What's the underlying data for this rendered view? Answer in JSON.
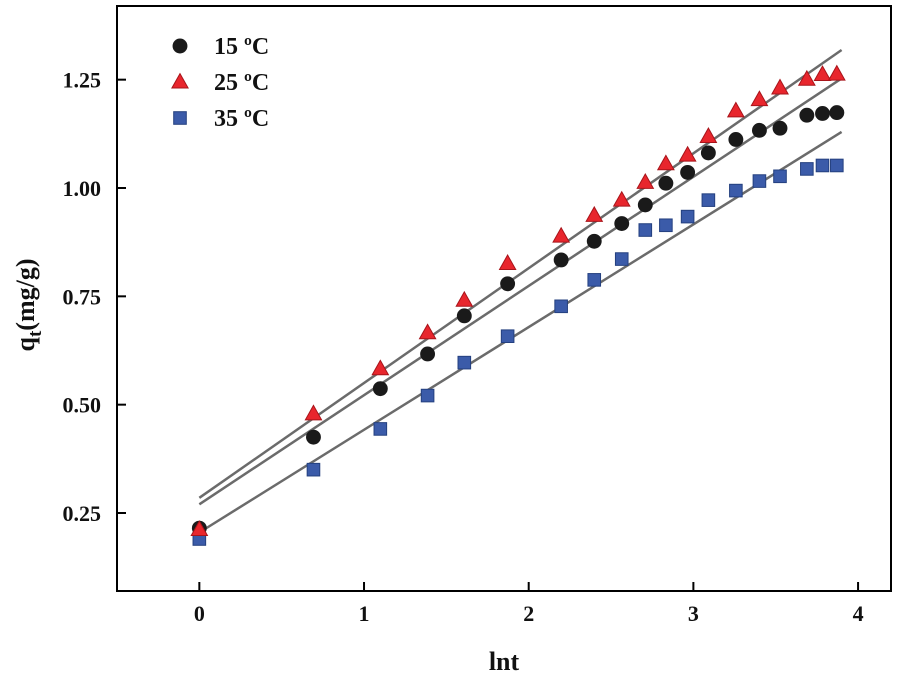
{
  "chart_data": {
    "type": "scatter",
    "title": "",
    "xlabel": "lnt",
    "ylabel_main": "q",
    "ylabel_sub": "t",
    "ylabel_rest": "(mg/g)",
    "xlim": [
      -0.5,
      4.2
    ],
    "ylim": [
      0.07,
      1.42
    ],
    "xticks": [
      0,
      1,
      2,
      3,
      4
    ],
    "xtick_labels": [
      "0",
      "1",
      "2",
      "3",
      "4"
    ],
    "yticks": [
      0.25,
      0.5,
      0.75,
      1.0,
      1.25
    ],
    "ytick_labels": [
      "0.25",
      "0.50",
      "0.75",
      "1.00",
      "1.25"
    ],
    "grid": false,
    "legend_position": "top-left",
    "x": [
      0,
      0.693,
      1.099,
      1.386,
      1.609,
      1.872,
      2.197,
      2.398,
      2.565,
      2.708,
      2.833,
      2.965,
      3.091,
      3.258,
      3.401,
      3.526,
      3.689,
      3.784,
      3.871
    ],
    "series": [
      {
        "name": "15 ºC",
        "marker": "circle",
        "color": "#1a1a1a",
        "values": [
          0.215,
          0.425,
          0.537,
          0.617,
          0.705,
          0.779,
          0.834,
          0.877,
          0.918,
          0.961,
          1.011,
          1.036,
          1.081,
          1.112,
          1.133,
          1.138,
          1.168,
          1.172,
          1.174
        ],
        "fit": {
          "slope": 0.252,
          "intercept": 0.27
        }
      },
      {
        "name": "25 ºC",
        "marker": "triangle",
        "color": "#e8262d",
        "values": [
          0.212,
          0.479,
          0.583,
          0.666,
          0.741,
          0.826,
          0.889,
          0.937,
          0.972,
          1.013,
          1.056,
          1.076,
          1.119,
          1.178,
          1.204,
          1.231,
          1.251,
          1.262,
          1.263
        ],
        "fit": {
          "slope": 0.265,
          "intercept": 0.285
        }
      },
      {
        "name": "35 ºC",
        "marker": "square",
        "color": "#3b5ba9",
        "values": [
          0.19,
          0.35,
          0.444,
          0.521,
          0.597,
          0.658,
          0.727,
          0.788,
          0.836,
          0.903,
          0.914,
          0.934,
          0.972,
          0.994,
          1.016,
          1.027,
          1.044,
          1.052,
          1.052
        ],
        "fit": {
          "slope": 0.237,
          "intercept": 0.205
        }
      }
    ]
  }
}
